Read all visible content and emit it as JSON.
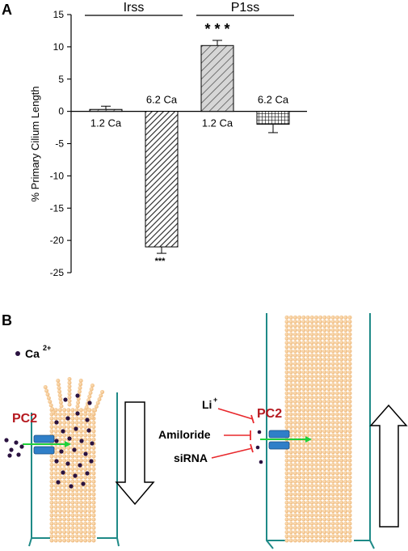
{
  "panels": {
    "a_label": "A",
    "b_label": "B"
  },
  "chart_data": {
    "type": "bar",
    "ylabel": "% Primary Cilium Length",
    "ylim": [
      -25,
      15
    ],
    "yticks": [
      -25,
      -20,
      -15,
      -10,
      -5,
      0,
      5,
      10,
      15
    ],
    "grid": false,
    "groups": [
      {
        "label": "Irss",
        "bar_indices": [
          0,
          1
        ]
      },
      {
        "label": "P1ss",
        "bar_indices": [
          2,
          3
        ]
      }
    ],
    "bars": [
      {
        "label": "1.2 Ca",
        "value": 0.3,
        "error": 0.5,
        "pattern": "diagonal-hatch-light",
        "significance": ""
      },
      {
        "label": "6.2 Ca",
        "value": -21,
        "error": 1.0,
        "pattern": "diagonal-hatch-dense",
        "significance": "***"
      },
      {
        "label": "1.2 Ca",
        "value": 10.2,
        "error": 0.8,
        "pattern": "diagonal-hatch-light",
        "significance": "* * *"
      },
      {
        "label": "6.2 Ca",
        "value": -2,
        "error": 1.3,
        "pattern": "crosshatch",
        "significance": ""
      }
    ]
  },
  "diagram": {
    "calcium_label": "Ca",
    "calcium_charge": "2+",
    "pc2_label": "PC2",
    "inhibitors": [
      {
        "label": "Li",
        "superscript": "+"
      },
      {
        "label": "Amiloride",
        "superscript": ""
      },
      {
        "label": "siRNA",
        "superscript": ""
      }
    ],
    "colors": {
      "membrane": "#1f8a87",
      "cilium": "#f4c892",
      "channel": "#2f7fc8",
      "flux_arrow": "#1fd03a",
      "inhibitor": "#e8282c",
      "calcium_dot": "#2a1240",
      "pc2_text": "#b5191f"
    },
    "left_arrow_direction": "down",
    "right_arrow_direction": "up"
  }
}
